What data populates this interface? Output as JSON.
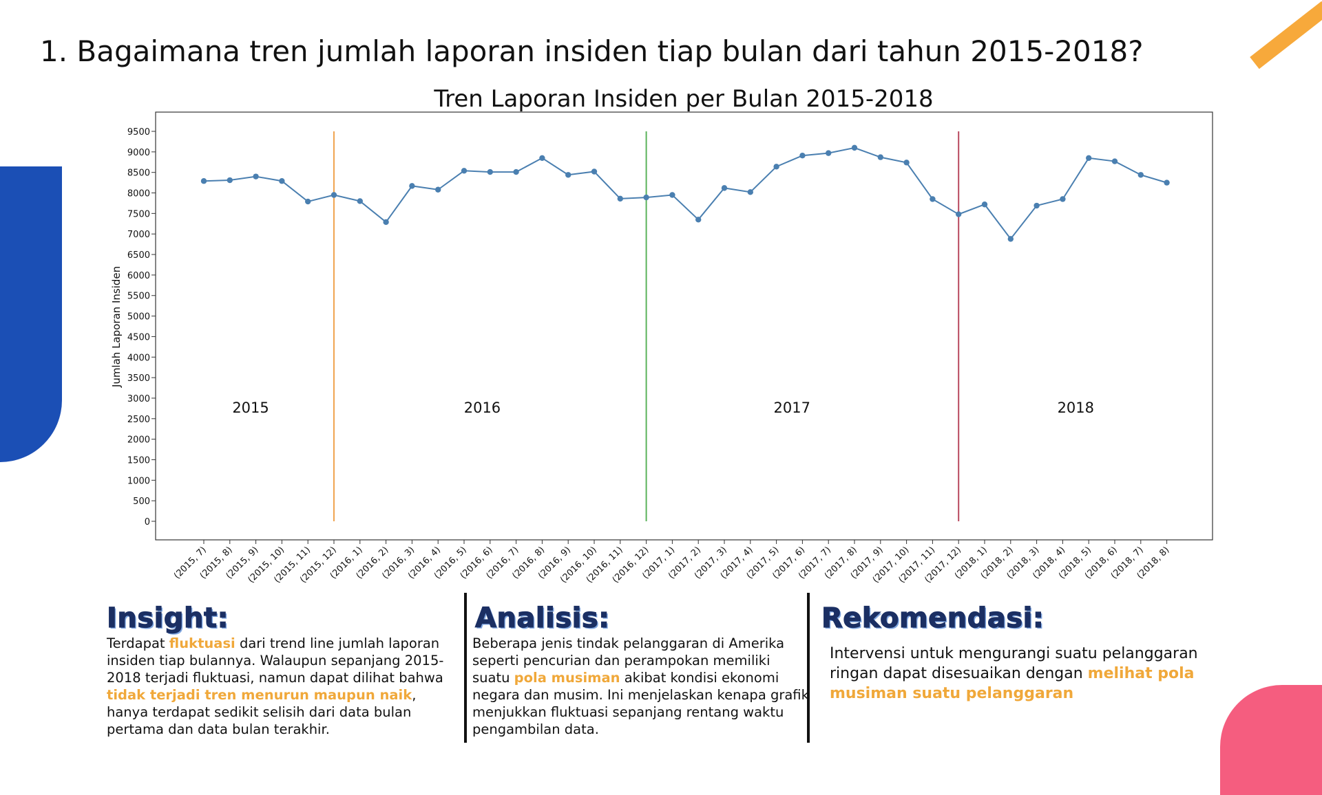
{
  "page": {
    "title": "1. Bagaimana tren jumlah laporan insiden tiap bulan dari tahun 2015-2018?"
  },
  "colors": {
    "line": "#4a7fb0",
    "vline_2016": "#f0a450",
    "vline_2017": "#5ab25a",
    "vline_2018": "#b8485e",
    "highlight": "#f0a83a",
    "heading": "#1b2f63"
  },
  "chart_data": {
    "type": "line",
    "title": "Tren Laporan Insiden per Bulan 2015-2018",
    "xlabel": "",
    "ylabel": "Jumlah Laporan Insiden",
    "ylim": [
      0,
      9500
    ],
    "yticks": [
      0,
      500,
      1000,
      1500,
      2000,
      2500,
      3000,
      3500,
      4000,
      4500,
      5000,
      5500,
      6000,
      6500,
      7000,
      7500,
      8000,
      8500,
      9000,
      9500
    ],
    "grid": false,
    "categories": [
      "(2015, 7)",
      "(2015, 8)",
      "(2015, 9)",
      "(2015, 10)",
      "(2015, 11)",
      "(2015, 12)",
      "(2016, 1)",
      "(2016, 2)",
      "(2016, 3)",
      "(2016, 4)",
      "(2016, 5)",
      "(2016, 6)",
      "(2016, 7)",
      "(2016, 8)",
      "(2016, 9)",
      "(2016, 10)",
      "(2016, 11)",
      "(2016, 12)",
      "(2017, 1)",
      "(2017, 2)",
      "(2017, 3)",
      "(2017, 4)",
      "(2017, 5)",
      "(2017, 6)",
      "(2017, 7)",
      "(2017, 8)",
      "(2017, 9)",
      "(2017, 10)",
      "(2017, 11)",
      "(2017, 12)",
      "(2018, 1)",
      "(2018, 2)",
      "(2018, 3)",
      "(2018, 4)",
      "(2018, 5)",
      "(2018, 6)",
      "(2018, 7)",
      "(2018, 8)"
    ],
    "values": [
      8290,
      8310,
      8400,
      8290,
      7790,
      7950,
      7800,
      7290,
      8170,
      8080,
      8540,
      8510,
      8510,
      8850,
      8440,
      8520,
      7860,
      7890,
      7950,
      7350,
      8120,
      8020,
      8640,
      8910,
      8970,
      9100,
      8870,
      8740,
      7850,
      7480,
      7720,
      6880,
      7690,
      7850,
      8850,
      8770,
      8440,
      8250
    ],
    "vertical_lines": [
      {
        "after_category": "(2015, 12)",
        "color_key": "vline_2016"
      },
      {
        "after_category": "(2016, 12)",
        "color_key": "vline_2017"
      },
      {
        "after_category": "(2017, 12)",
        "color_key": "vline_2018"
      }
    ],
    "annotations": [
      {
        "text": "2015",
        "x": 1.8,
        "y": 2650
      },
      {
        "text": "2016",
        "x": 10.7,
        "y": 2650
      },
      {
        "text": "2017",
        "x": 22.6,
        "y": 2650
      },
      {
        "text": "2018",
        "x": 33.5,
        "y": 2650
      }
    ]
  },
  "insight": {
    "heading": "Insight:",
    "parts": [
      {
        "text": "Terdapat ",
        "hl": false
      },
      {
        "text": "fluktuasi",
        "hl": true
      },
      {
        "text": " dari trend line jumlah laporan insiden tiap bulannya. Walaupun sepanjang 2015-2018 terjadi fluktuasi, namun dapat dilihat bahwa ",
        "hl": false
      },
      {
        "text": "tidak terjadi tren menurun maupun naik",
        "hl": true
      },
      {
        "text": ", hanya terdapat sedikit selisih dari data bulan pertama dan data bulan terakhir.",
        "hl": false
      }
    ]
  },
  "analisis": {
    "heading": "Analisis:",
    "parts": [
      {
        "text": "Beberapa jenis tindak pelanggaran di Amerika seperti pencurian dan perampokan memiliki suatu ",
        "hl": false
      },
      {
        "text": "pola musiman",
        "hl": true
      },
      {
        "text": " akibat kondisi ekonomi negara dan musim. Ini menjelaskan kenapa grafik menjukkan fluktuasi sepanjang rentang waktu pengambilan data.",
        "hl": false
      }
    ]
  },
  "rekomendasi": {
    "heading": "Rekomendasi:",
    "parts": [
      {
        "text": "Intervensi untuk mengurangi suatu pelanggaran ringan dapat disesuaikan dengan ",
        "hl": false
      },
      {
        "text": "melihat pola musiman suatu pelanggaran",
        "hl": true
      }
    ]
  }
}
